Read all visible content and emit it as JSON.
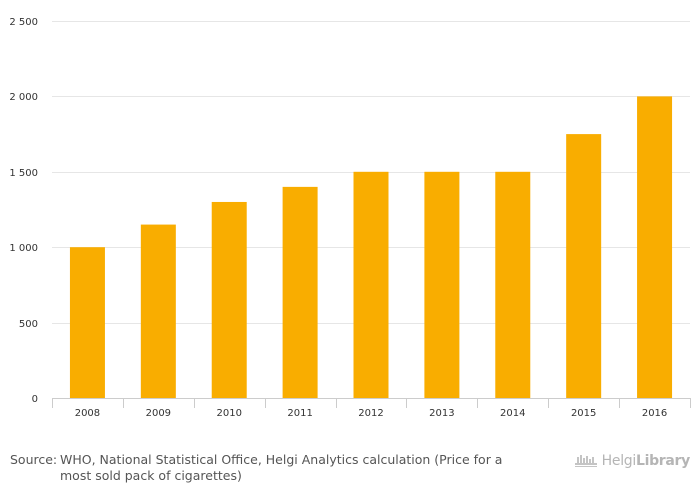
{
  "chart_data": {
    "type": "bar",
    "categories": [
      "2008",
      "2009",
      "2010",
      "2011",
      "2012",
      "2013",
      "2014",
      "2015",
      "2016"
    ],
    "values": [
      1000,
      1150,
      1300,
      1400,
      1500,
      1500,
      1500,
      1750,
      2000
    ],
    "ylim": [
      0,
      2500
    ],
    "yticks": [
      0,
      500,
      1000,
      1500,
      2000,
      2500
    ],
    "ytick_labels": [
      "0",
      "500",
      "1 000",
      "1 500",
      "2 000",
      "2 500"
    ],
    "grid": true,
    "bar_color": "#f9ad00",
    "grid_color": "#e6e6e6",
    "axis_color": "#cccccc"
  },
  "footer": {
    "source_prefix": "Source:",
    "source_text": "WHO, National Statistical Office, Helgi Analytics calculation (Price for a most sold pack of cigarettes)",
    "brand_text_light": "Helgi",
    "brand_text_bold": "Library"
  }
}
